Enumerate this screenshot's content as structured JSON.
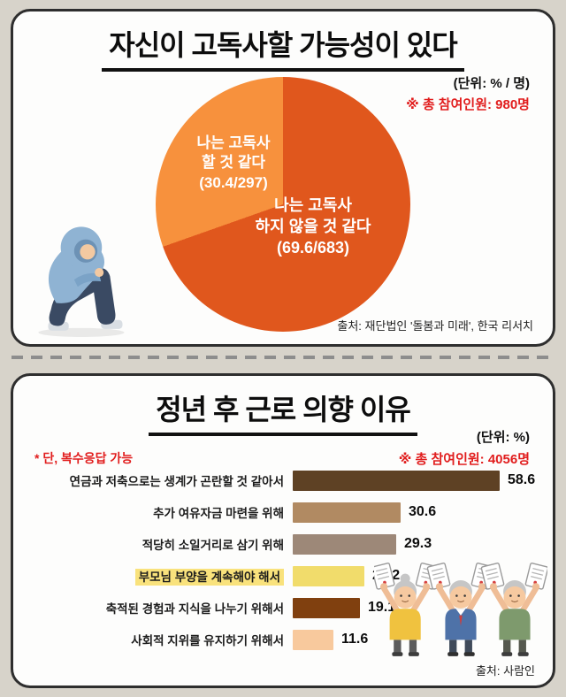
{
  "colors": {
    "page_bg": "#d7d3ca",
    "card_border": "#2e2e2e",
    "accent_red": "#e11d1d",
    "pie_likely": "#f7913d",
    "pie_unlikely": "#e0571d",
    "highlight_yellow": "#f9e27c"
  },
  "icons": {
    "person_illustration": "sitting-hooded-person-illustration",
    "seniors_illustration": "three-seniors-holding-certificates-illustration"
  },
  "section1": {
    "title": "자신이 고독사할 가능성이 있다",
    "unit_label": "(단위: % / 명)",
    "participants_note": "※ 총 참여인원: 980명",
    "source": "출처: 재단법인 '돌봄과 미래', 한국 리서치",
    "pie": {
      "slices": [
        {
          "name": "likely",
          "label": "나는 고독사\n할 것 같다\n(30.4/297)",
          "value": 30.4,
          "count": 297,
          "color": "#f7913d"
        },
        {
          "name": "unlikely",
          "label": "나는 고독사\n하지 않을 것 같다\n(69.6/683)",
          "value": 69.6,
          "count": 683,
          "color": "#e0571d"
        }
      ]
    }
  },
  "section2": {
    "title": "정년 후 근로 의향 이유",
    "unit_label": "(단위: %)",
    "note": "* 단, 복수응답 가능",
    "participants_note": "※ 총 참여인원: 4056명",
    "source": "출처: 사람인",
    "bars": [
      {
        "label": "연금과 저축으로는 생계가 곤란할 것 같아서",
        "value": 58.6,
        "color": "#5e4124",
        "highlight": false
      },
      {
        "label": "추가 여유자금 마련을 위해",
        "value": 30.6,
        "color": "#b18a62",
        "highlight": false
      },
      {
        "label": "적당히 소일거리로 삼기 위해",
        "value": 29.3,
        "color": "#9d8878",
        "highlight": false
      },
      {
        "label": "부모님 부양을 계속해야 해서",
        "value": 20.2,
        "color": "#f1dc6b",
        "highlight": true
      },
      {
        "label": "축적된 경험과 지식을 나누기 위해서",
        "value": 19.1,
        "color": "#80400f",
        "highlight": false
      },
      {
        "label": "사회적 지위를 유지하기 위해서",
        "value": 11.6,
        "color": "#f8c99d",
        "highlight": false
      }
    ]
  },
  "chart_data": [
    {
      "type": "pie",
      "title": "자신이 고독사할 가능성이 있다",
      "unit": "% / 명",
      "total_participants": 980,
      "slices": [
        {
          "label": "나는 고독사 할 것 같다",
          "percent": 30.4,
          "count": 297
        },
        {
          "label": "나는 고독사 하지 않을 것 같다",
          "percent": 69.6,
          "count": 683
        }
      ],
      "source": "재단법인 '돌봄과 미래', 한국 리서치"
    },
    {
      "type": "bar",
      "orientation": "horizontal",
      "title": "정년 후 근로 의향 이유",
      "unit": "%",
      "total_participants": 4056,
      "note": "복수응답 가능",
      "categories": [
        "연금과 저축으로는 생계가 곤란할 것 같아서",
        "추가 여유자금 마련을 위해",
        "적당히 소일거리로 삼기 위해",
        "부모님 부양을 계속해야 해서",
        "축적된 경험과 지식을 나누기 위해서",
        "사회적 지위를 유지하기 위해서"
      ],
      "values": [
        58.6,
        30.6,
        29.3,
        20.2,
        19.1,
        11.6
      ],
      "xlim": [
        0,
        60
      ],
      "source": "사람인"
    }
  ]
}
